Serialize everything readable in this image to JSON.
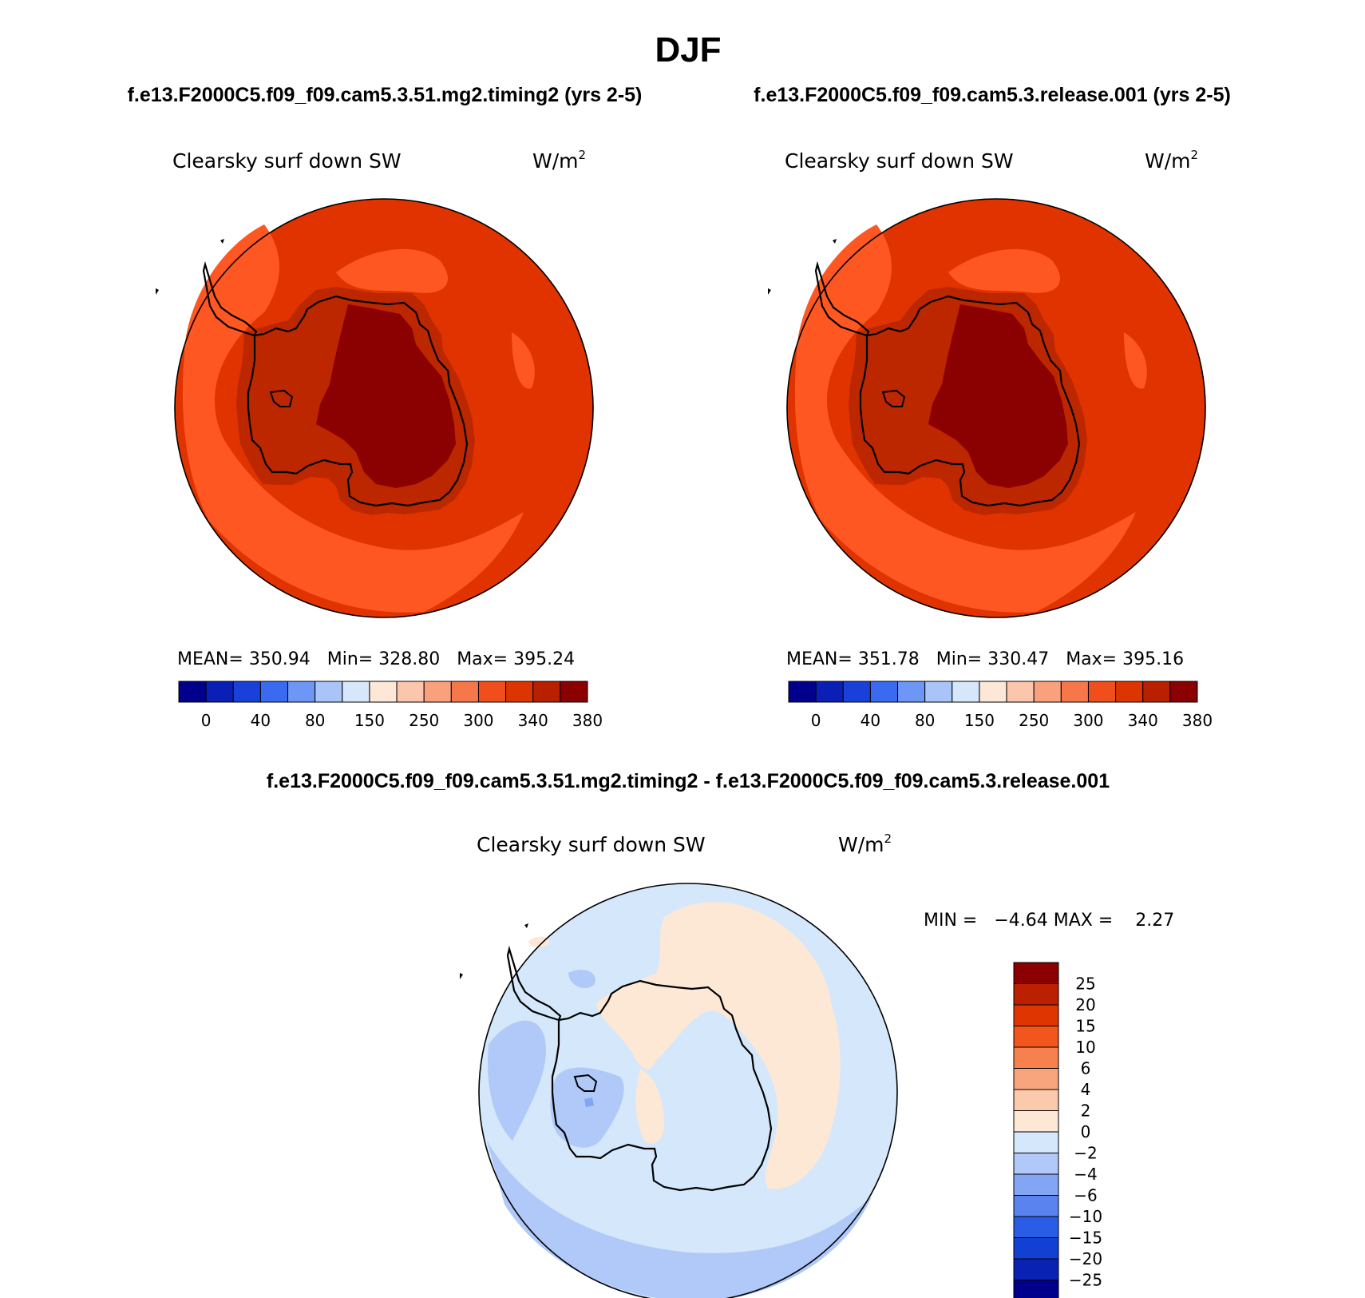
{
  "figure": {
    "title": "DJF",
    "case_left": "f.e13.F2000C5.f09_f09.cam5.3.51.mg2.timing2 (yrs 2-5)",
    "case_right": "f.e13.F2000C5.f09_f09.cam5.3.release.001 (yrs 2-5)",
    "diff_title": "f.e13.F2000C5.f09_f09.cam5.3.51.mg2.timing2 - f.e13.F2000C5.f09_f09.cam5.3.release.001"
  },
  "panels": [
    {
      "variable": "Clearsky surf down SW",
      "units": "W/m",
      "units_sup": "2",
      "stats": "MEAN= 350.94   Min= 328.80   Max= 395.24"
    },
    {
      "variable": "Clearsky surf down SW",
      "units": "W/m",
      "units_sup": "2",
      "stats": "MEAN= 351.78   Min= 330.47   Max= 395.16"
    }
  ],
  "diff_panel": {
    "variable": "Clearsky surf down SW",
    "units": "W/m",
    "units_sup": "2",
    "stats": "MIN =   −4.64 MAX =    2.27"
  },
  "abs_colorbar": {
    "colors": [
      "#00008c",
      "#0a1fb5",
      "#1941d9",
      "#3a6af0",
      "#6d96f5",
      "#a9c4f8",
      "#d6e7fb",
      "#fde7d6",
      "#fbc6ab",
      "#f9a07c",
      "#f6774a",
      "#f04f1d",
      "#dd3500",
      "#b82000",
      "#8b0000"
    ],
    "labels": [
      "0",
      "40",
      "80",
      "150",
      "250",
      "300",
      "340",
      "380"
    ]
  },
  "diff_colorbar": {
    "colors": [
      "#8b0000",
      "#bb2000",
      "#df3500",
      "#f2561c",
      "#f6814f",
      "#f8a57e",
      "#fbc9ab",
      "#fde8d6",
      "#d5e7fb",
      "#b0c9f8",
      "#82a5f4",
      "#5a83f0",
      "#2a5de6",
      "#1240d3",
      "#0a22b3",
      "#00008c"
    ],
    "labels": [
      "25",
      "20",
      "15",
      "10",
      "6",
      "4",
      "2",
      "0",
      "−2",
      "−4",
      "−6",
      "−10",
      "−15",
      "−20",
      "−25"
    ]
  },
  "map_colors": {
    "abs_outer": "#e03300",
    "abs_sea_light": "#ff5722",
    "abs_coast_ring": "#bc2700",
    "abs_interior": "#8b0000",
    "diff_bg": "#d5e7fb",
    "diff_pos": "#fde8d6",
    "diff_neg": "#b0c9f8",
    "diff_neg_strong": "#82a5f4"
  }
}
